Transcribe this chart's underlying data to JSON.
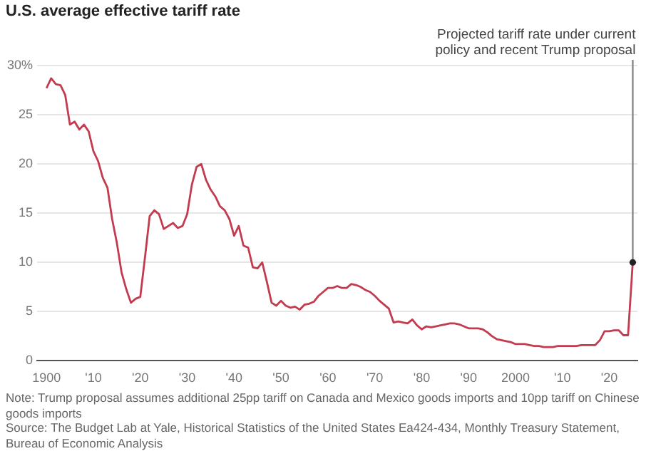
{
  "chart_data": {
    "type": "line",
    "title": "U.S. average effective tariff rate",
    "x": [
      1900,
      1901,
      1902,
      1903,
      1904,
      1905,
      1906,
      1907,
      1908,
      1909,
      1910,
      1911,
      1912,
      1913,
      1914,
      1915,
      1916,
      1917,
      1918,
      1919,
      1920,
      1921,
      1922,
      1923,
      1924,
      1925,
      1926,
      1927,
      1928,
      1929,
      1930,
      1931,
      1932,
      1933,
      1934,
      1935,
      1936,
      1937,
      1938,
      1939,
      1940,
      1941,
      1942,
      1943,
      1944,
      1945,
      1946,
      1947,
      1948,
      1949,
      1950,
      1951,
      1952,
      1953,
      1954,
      1955,
      1956,
      1957,
      1958,
      1959,
      1960,
      1961,
      1962,
      1963,
      1964,
      1965,
      1966,
      1967,
      1968,
      1969,
      1970,
      1971,
      1972,
      1973,
      1974,
      1975,
      1976,
      1977,
      1978,
      1979,
      1980,
      1981,
      1982,
      1983,
      1984,
      1985,
      1986,
      1987,
      1988,
      1989,
      1990,
      1991,
      1992,
      1993,
      1994,
      1995,
      1996,
      1997,
      1998,
      1999,
      2000,
      2001,
      2002,
      2003,
      2004,
      2005,
      2006,
      2007,
      2008,
      2009,
      2010,
      2011,
      2012,
      2013,
      2014,
      2015,
      2016,
      2017,
      2018,
      2019,
      2020,
      2021,
      2022,
      2023,
      2024,
      2025
    ],
    "series": [
      {
        "color": "#c23b4e",
        "values": [
          27.7,
          28.7,
          28.1,
          28,
          27,
          24,
          24.3,
          23.5,
          24,
          23.3,
          21.3,
          20.3,
          18.6,
          17.6,
          14.4,
          12,
          9,
          7.3,
          5.9,
          6.3,
          6.5,
          10.5,
          14.7,
          15.3,
          14.9,
          13.4,
          13.7,
          14,
          13.5,
          13.7,
          14.9,
          17.9,
          19.7,
          20,
          18.4,
          17.4,
          16.7,
          15.7,
          15.3,
          14.4,
          12.7,
          13.7,
          11.7,
          11.5,
          9.5,
          9.4,
          10,
          8,
          5.9,
          5.6,
          6.1,
          5.6,
          5.4,
          5.5,
          5.2,
          5.7,
          5.8,
          6,
          6.6,
          7,
          7.4,
          7.4,
          7.6,
          7.4,
          7.4,
          7.8,
          7.7,
          7.5,
          7.2,
          7,
          6.6,
          6.1,
          5.7,
          5.3,
          3.9,
          4,
          3.9,
          3.8,
          4.2,
          3.6,
          3.2,
          3.5,
          3.4,
          3.5,
          3.6,
          3.7,
          3.8,
          3.8,
          3.7,
          3.5,
          3.3,
          3.3,
          3.3,
          3.2,
          2.9,
          2.5,
          2.2,
          2.1,
          2,
          1.9,
          1.7,
          1.7,
          1.7,
          1.6,
          1.5,
          1.5,
          1.4,
          1.4,
          1.4,
          1.5,
          1.5,
          1.5,
          1.5,
          1.5,
          1.6,
          1.6,
          1.6,
          1.6,
          2.1,
          3,
          3,
          3.1,
          3.1,
          2.6,
          2.6,
          10
        ]
      }
    ],
    "xlim": [
      1898,
      2026
    ],
    "xticks": [
      1900,
      {
        "value": 1910,
        "label": "'10"
      },
      {
        "value": 1920,
        "label": "'20"
      },
      {
        "value": 1930,
        "label": "'30"
      },
      {
        "value": 1940,
        "label": "'40"
      },
      {
        "value": 1950,
        "label": "'50"
      },
      {
        "value": 1960,
        "label": "'60"
      },
      {
        "value": 1970,
        "label": "'70"
      },
      {
        "value": 1980,
        "label": "'80"
      },
      {
        "value": 1990,
        "label": "'90"
      },
      2000,
      {
        "value": 2010,
        "label": "'10"
      },
      {
        "value": 2020,
        "label": "'20"
      }
    ],
    "ylim": [
      0,
      30
    ],
    "yticks": [
      0,
      5,
      10,
      15,
      20,
      25,
      {
        "value": 30,
        "label": "30%"
      }
    ],
    "grid": "y",
    "legend": false,
    "marker": "none",
    "line_style": "solid",
    "annotations": [
      {
        "text": "Projected tariff rate under current policy and recent Trump proposal",
        "x": 2025,
        "y": 10
      },
      "Note: Trump proposal assumes additional 25pp tariff on Canada and Mexico goods imports and 10pp tariff on Chinese goods imports",
      "Source: The Budget Lab at Yale, Historical Statistics of the United States Ea424-434, Monthly Treasury Statement, Bureau of Economic Analysis"
    ]
  }
}
